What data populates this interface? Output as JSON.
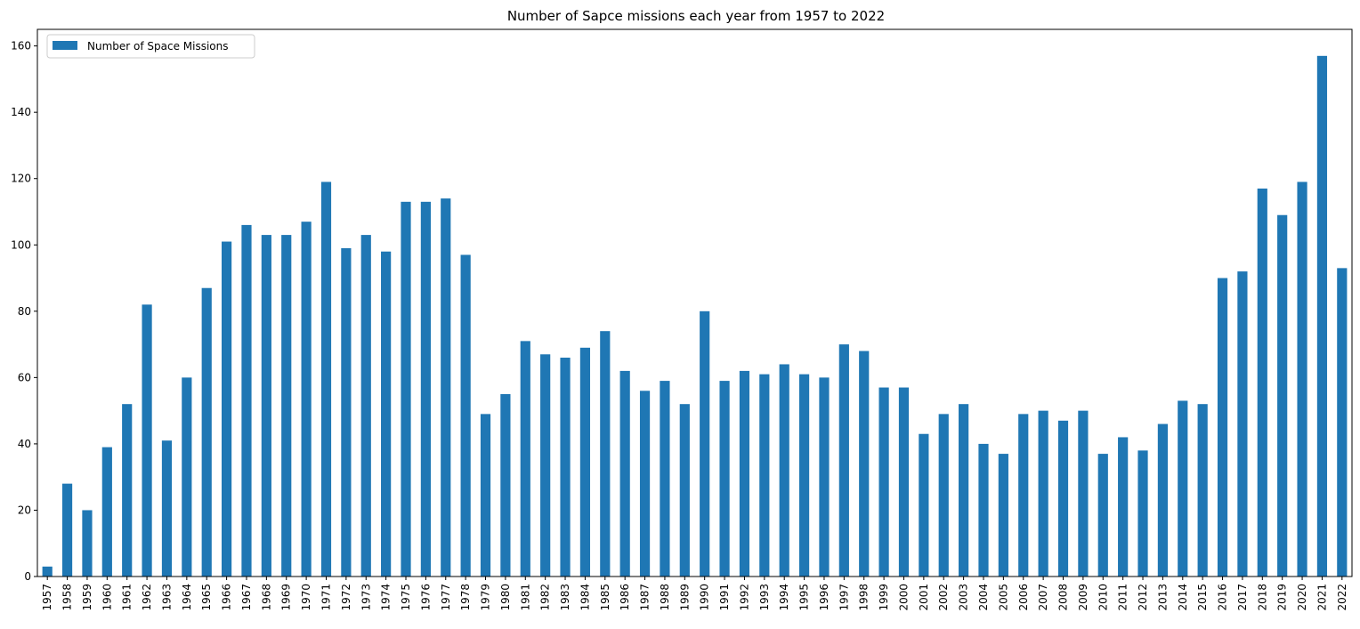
{
  "chart_data": {
    "type": "bar",
    "title": "Number of Sapce missions each year from 1957 to 2022",
    "xlabel": "",
    "ylabel": "",
    "ylim": [
      0,
      165
    ],
    "yticks": [
      0,
      20,
      40,
      60,
      80,
      100,
      120,
      140,
      160
    ],
    "grid": false,
    "legend_position": "top-left",
    "bar_color": "#1f77b4",
    "categories": [
      "1957",
      "1958",
      "1959",
      "1960",
      "1961",
      "1962",
      "1963",
      "1964",
      "1965",
      "1966",
      "1967",
      "1968",
      "1969",
      "1970",
      "1971",
      "1972",
      "1973",
      "1974",
      "1975",
      "1976",
      "1977",
      "1978",
      "1979",
      "1980",
      "1981",
      "1982",
      "1983",
      "1984",
      "1985",
      "1986",
      "1987",
      "1988",
      "1989",
      "1990",
      "1991",
      "1992",
      "1993",
      "1994",
      "1995",
      "1996",
      "1997",
      "1998",
      "1999",
      "2000",
      "2001",
      "2002",
      "2003",
      "2004",
      "2005",
      "2006",
      "2007",
      "2008",
      "2009",
      "2010",
      "2011",
      "2012",
      "2013",
      "2014",
      "2015",
      "2016",
      "2017",
      "2018",
      "2019",
      "2020",
      "2021",
      "2022"
    ],
    "series": [
      {
        "name": "Number of Space Missions",
        "values": [
          3,
          28,
          20,
          39,
          52,
          82,
          41,
          60,
          87,
          101,
          106,
          103,
          103,
          107,
          119,
          99,
          103,
          98,
          113,
          113,
          114,
          97,
          49,
          55,
          71,
          67,
          66,
          69,
          74,
          62,
          56,
          59,
          52,
          80,
          59,
          62,
          61,
          64,
          61,
          60,
          70,
          68,
          57,
          57,
          43,
          49,
          52,
          40,
          37,
          49,
          50,
          47,
          50,
          37,
          42,
          38,
          46,
          53,
          52,
          90,
          92,
          117,
          109,
          119,
          157,
          93
        ]
      }
    ]
  }
}
